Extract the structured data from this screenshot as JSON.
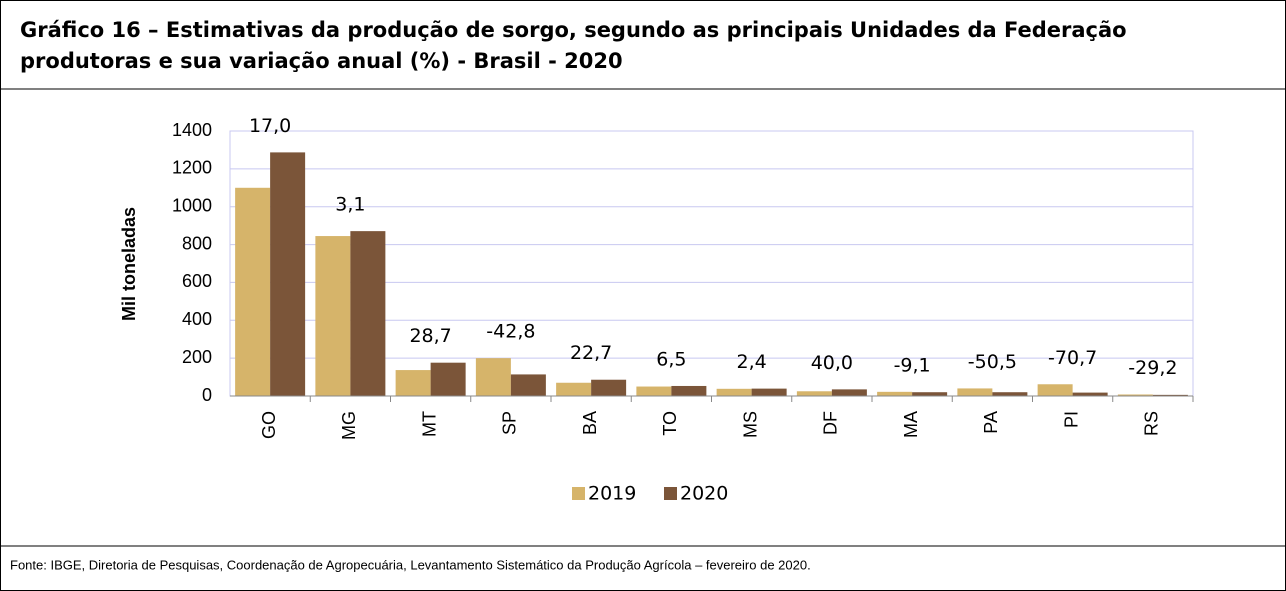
{
  "chart_data": {
    "type": "bar",
    "title": "Gráfico 16 – Estimativas da produção de sorgo, segundo as principais Unidades da Federação",
    "subtitle": "produtoras e sua variação anual (%) - Brasil - 2020",
    "y_label": "Mil toneladas",
    "categories": [
      "GO",
      "MG",
      "MT",
      "SP",
      "BA",
      "TO",
      "MS",
      "DF",
      "MA",
      "PA",
      "PI",
      "RS"
    ],
    "series": [
      {
        "name": "2019",
        "color": "#d6b46a",
        "values": [
          1100,
          845,
          137,
          200,
          70,
          50,
          38,
          25,
          22,
          40,
          62,
          8
        ]
      },
      {
        "name": "2020",
        "color": "#7b5539",
        "values": [
          1287,
          871,
          176,
          114,
          86,
          53,
          39,
          35,
          20,
          20,
          18,
          6
        ]
      }
    ],
    "annotations": {
      "values": [
        17.0,
        3.1,
        28.7,
        -42.8,
        22.7,
        6.5,
        2.4,
        40.0,
        -9.1,
        -50.5,
        -70.7,
        -29.2
      ],
      "value_labels": [
        "17,0",
        "3,1",
        "28,7",
        "-42,8",
        "22,7",
        "6,5",
        "2,4",
        "40,0",
        "-9,1",
        "-50,5",
        "-70,7",
        "-29,2"
      ]
    },
    "ylim": [
      0,
      1400
    ],
    "yticks": [
      0,
      200,
      400,
      600,
      800,
      1000,
      1200,
      1400
    ],
    "grid": true,
    "legend": "bottom",
    "source": "Fonte: IBGE, Diretoria de Pesquisas, Coordenação de Agropecuária, Levantamento Sistemático da Produção Agrícola – fevereiro de 2020."
  }
}
